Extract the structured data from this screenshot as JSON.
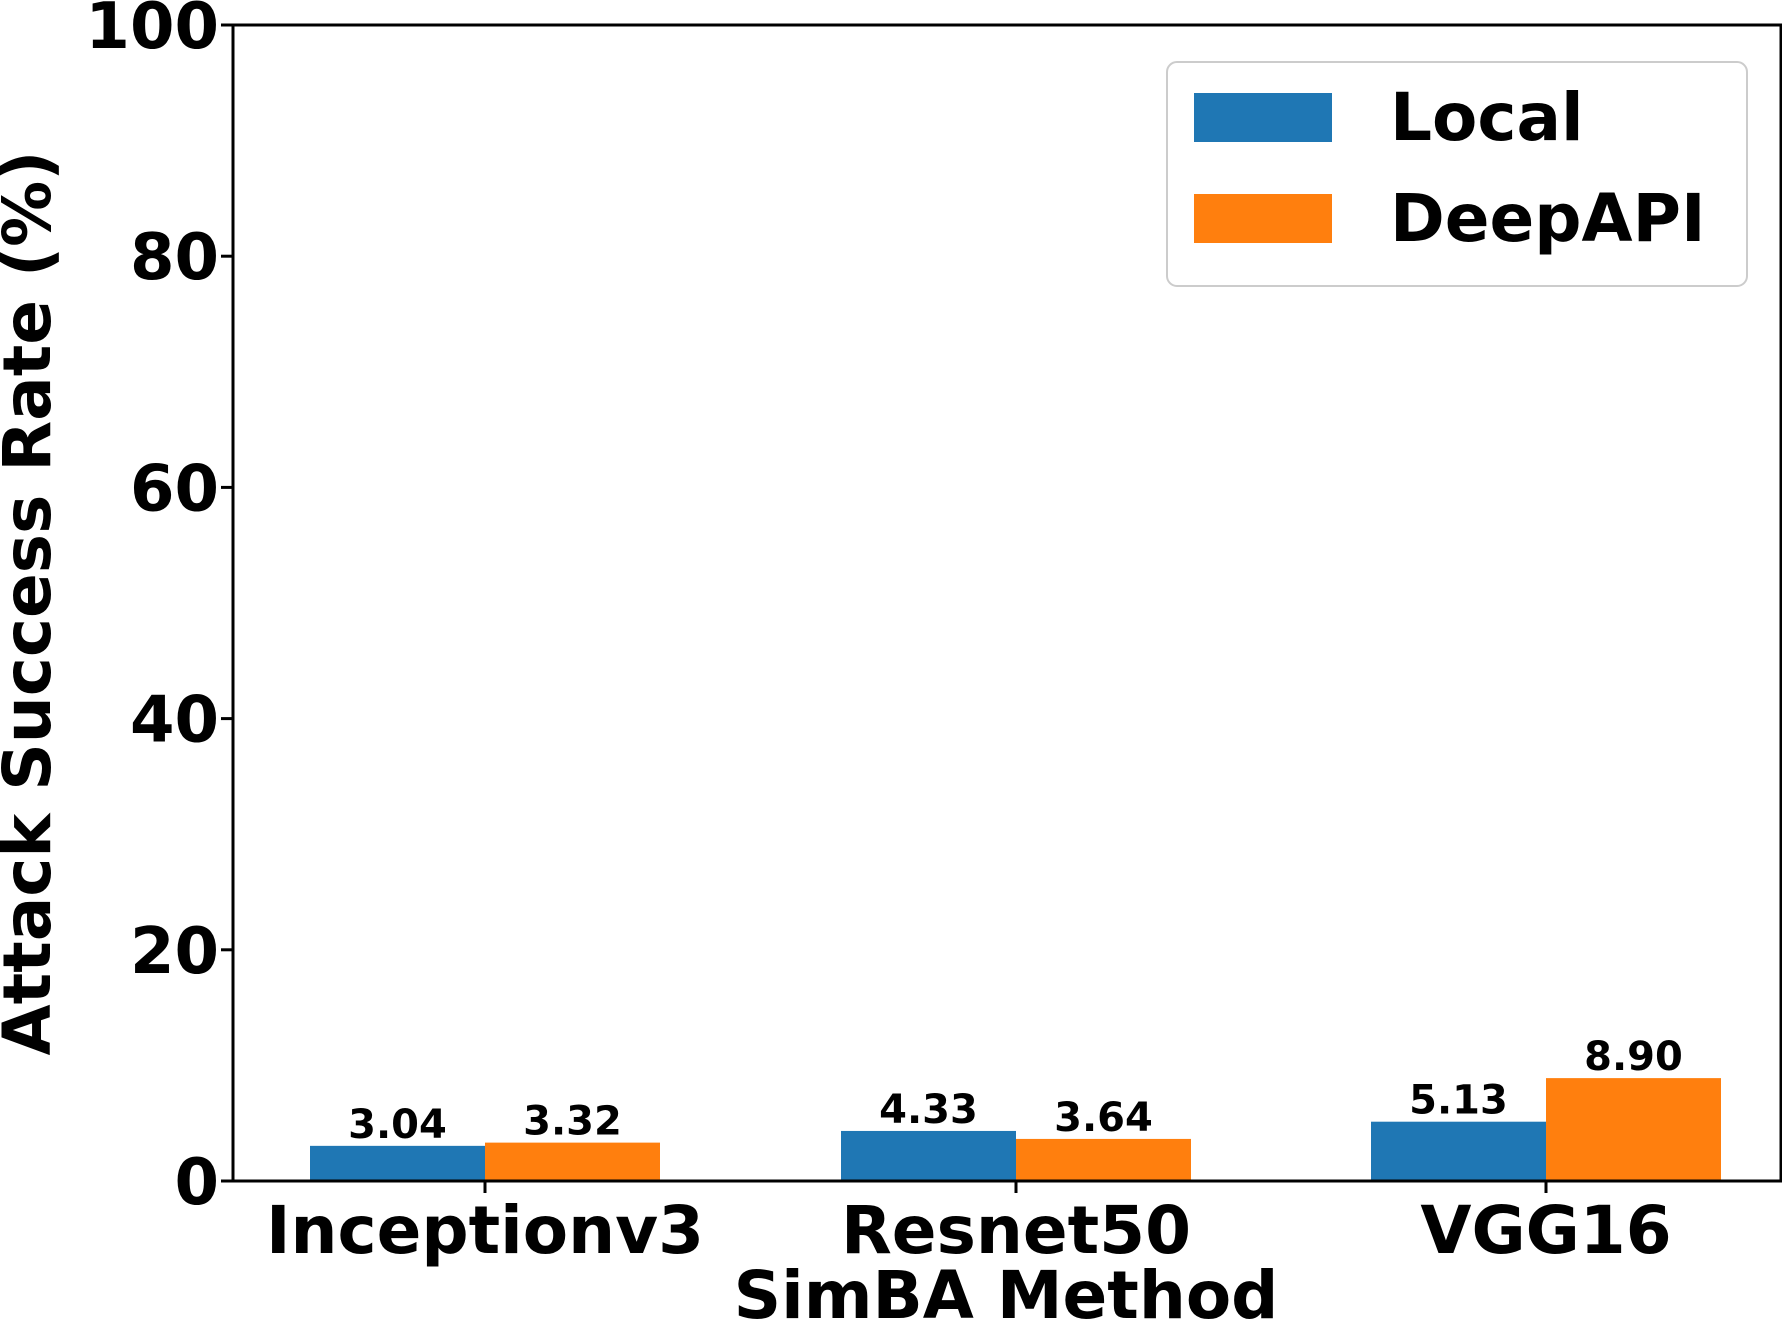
{
  "chart_data": {
    "type": "bar",
    "title": "",
    "xlabel": "SimBA Method",
    "ylabel": "Attack Success Rate (%)",
    "ylim": [
      0,
      100
    ],
    "yticks": [
      0,
      20,
      40,
      60,
      80,
      100
    ],
    "categories": [
      "Inceptionv3",
      "Resnet50",
      "VGG16"
    ],
    "series": [
      {
        "name": "Local",
        "color": "#1f77b4",
        "values": [
          3.04,
          4.33,
          5.13
        ],
        "labels": [
          "3.04",
          "4.33",
          "5.13"
        ]
      },
      {
        "name": "DeepAPI",
        "color": "#ff7f0e",
        "values": [
          3.32,
          3.64,
          8.9
        ],
        "labels": [
          "3.32",
          "3.64",
          "8.90"
        ]
      }
    ],
    "legend_position": "top-right",
    "grid": false
  }
}
